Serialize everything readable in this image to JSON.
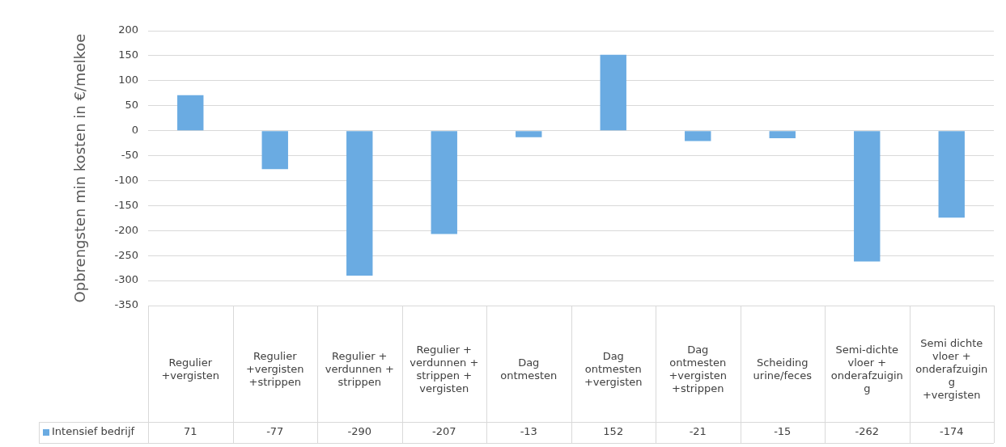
{
  "chart_data": {
    "type": "bar",
    "ylabel": "Opbrengsten min kosten in €/melkoe",
    "categories": [
      "Regulier +vergisten",
      "Regulier +vergisten +strippen",
      "Regulier + verdunnen + strippen",
      "Regulier + verdunnen + strippen + vergisten",
      "Dag ontmesten",
      "Dag ontmesten +vergisten",
      "Dag ontmesten +vergisten +strippen",
      "Scheiding urine/feces",
      "Semi-dichte vloer + onderafzuiging",
      "Semi dichte vloer + onderafzuiging +vergisten"
    ],
    "series": [
      {
        "name": "Intensief bedrijf",
        "color": "#6aabe2",
        "values": [
          71,
          -77,
          -290,
          -207,
          -13,
          152,
          -21,
          -15,
          -262,
          -174
        ]
      }
    ],
    "ylim": [
      -350,
      200
    ],
    "yticks": [
      -350,
      -300,
      -250,
      -200,
      -150,
      -100,
      -50,
      0,
      50,
      100,
      150,
      200
    ],
    "grid": "y",
    "legend": "bottom",
    "data_labels": true
  }
}
